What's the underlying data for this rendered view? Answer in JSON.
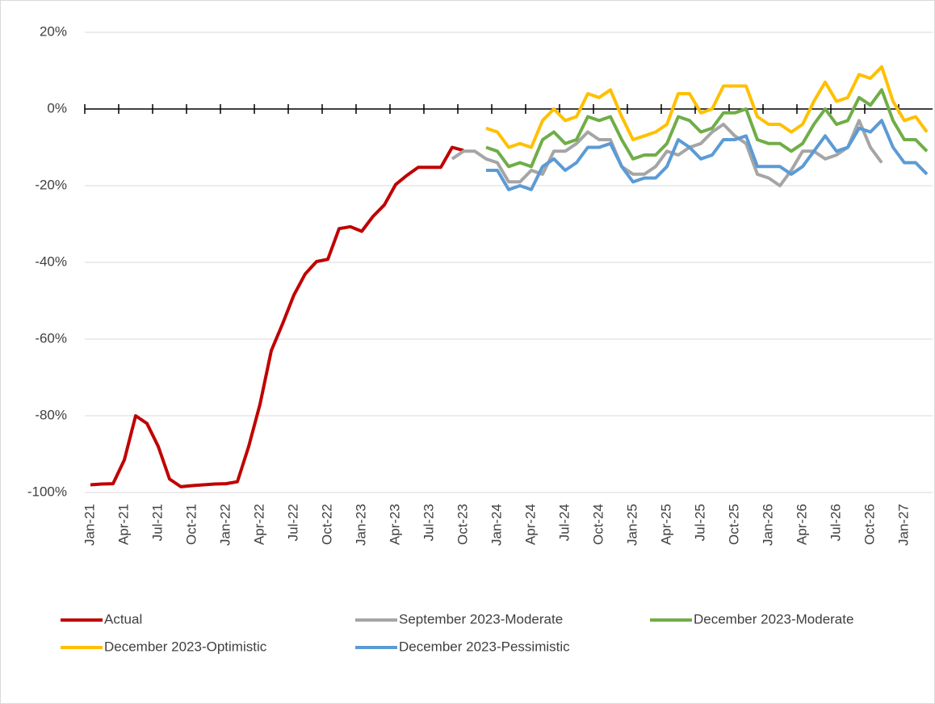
{
  "chart_data": {
    "type": "line",
    "categories": [
      "Jan-21",
      null,
      null,
      "Apr-21",
      null,
      null,
      "Jul-21",
      null,
      null,
      "Oct-21",
      null,
      null,
      "Jan-22",
      null,
      null,
      "Apr-22",
      null,
      null,
      "Jul-22",
      null,
      null,
      "Oct-22",
      null,
      null,
      "Jan-23",
      null,
      null,
      "Apr-23",
      null,
      null,
      "Jul-23",
      null,
      null,
      "Oct-23",
      null,
      null,
      "Jan-24",
      null,
      null,
      "Apr-24",
      null,
      null,
      "Jul-24",
      null,
      null,
      "Oct-24",
      null,
      null,
      "Jan-25",
      null,
      null,
      "Apr-25",
      null,
      null,
      "Jul-25",
      null,
      null,
      "Oct-25",
      null,
      null,
      "Jan-26",
      null,
      null,
      "Apr-26",
      null,
      null,
      "Jul-26",
      null,
      null,
      "Oct-26",
      null,
      null,
      "Jan-27",
      null,
      null
    ],
    "ylim": [
      -100,
      20
    ],
    "yticks": [
      {
        "value": 20,
        "label": "20%"
      },
      {
        "value": 0,
        "label": "0%"
      },
      {
        "value": -20,
        "label": "-20%"
      },
      {
        "value": -40,
        "label": "-40%"
      },
      {
        "value": -60,
        "label": "-60%"
      },
      {
        "value": -80,
        "label": "-80%"
      },
      {
        "value": -100,
        "label": "-100%"
      }
    ],
    "grid": true,
    "legend": "bottom",
    "series": [
      {
        "name": "Actual",
        "color": "#c00000",
        "values": [
          -98,
          -97.8,
          -97.7,
          -91.5,
          -80,
          -82,
          -88,
          -96.5,
          -98.5,
          -98.2,
          -98,
          -97.8,
          -97.7,
          -97.2,
          -88,
          -77,
          -63,
          -56,
          -48.5,
          -43,
          -39.8,
          -39.2,
          -31.2,
          -30.7,
          -31.9,
          -28,
          -25,
          -19.7,
          -17.3,
          -15.2,
          -15.2,
          -15.2,
          -10,
          -10.8,
          null,
          null,
          null,
          null,
          null,
          null,
          null,
          null,
          null,
          null,
          null,
          null,
          null,
          null,
          null,
          null,
          null,
          null,
          null,
          null,
          null,
          null,
          null,
          null,
          null,
          null,
          null,
          null,
          null,
          null,
          null,
          null,
          null,
          null,
          null,
          null,
          null,
          null,
          null,
          null,
          null
        ]
      },
      {
        "name": "September 2023-Moderate",
        "color": "#a5a5a5",
        "values": [
          null,
          null,
          null,
          null,
          null,
          null,
          null,
          null,
          null,
          null,
          null,
          null,
          null,
          null,
          null,
          null,
          null,
          null,
          null,
          null,
          null,
          null,
          null,
          null,
          null,
          null,
          null,
          null,
          null,
          null,
          null,
          null,
          -13,
          -11,
          -11,
          -13,
          -14,
          -19,
          -19,
          -16,
          -17,
          -11,
          -11,
          -9,
          -6,
          -8,
          -8,
          -15,
          -17,
          -17,
          -15,
          -11,
          -12,
          -10,
          -9,
          -6,
          -4,
          -7,
          -9,
          -17,
          -18,
          -20,
          -16,
          -11,
          -11,
          -13,
          -12,
          -10,
          -3,
          -10,
          -14,
          null,
          null,
          null,
          null
        ]
      },
      {
        "name": "December 2023-Moderate",
        "color": "#70ad47",
        "values": [
          null,
          null,
          null,
          null,
          null,
          null,
          null,
          null,
          null,
          null,
          null,
          null,
          null,
          null,
          null,
          null,
          null,
          null,
          null,
          null,
          null,
          null,
          null,
          null,
          null,
          null,
          null,
          null,
          null,
          null,
          null,
          null,
          null,
          null,
          null,
          -10,
          -11,
          -15,
          -14,
          -15,
          -8,
          -6,
          -9,
          -8,
          -2,
          -3,
          -2,
          -8,
          -13,
          -12,
          -12,
          -9,
          -2,
          -3,
          -6,
          -5,
          -1,
          -1,
          0,
          -8,
          -9,
          -9,
          -11,
          -9,
          -4,
          0,
          -4,
          -3,
          3,
          1,
          5,
          -3,
          -8,
          -8,
          -11
        ]
      },
      {
        "name": "December 2023-Optimistic",
        "color": "#ffc000",
        "values": [
          null,
          null,
          null,
          null,
          null,
          null,
          null,
          null,
          null,
          null,
          null,
          null,
          null,
          null,
          null,
          null,
          null,
          null,
          null,
          null,
          null,
          null,
          null,
          null,
          null,
          null,
          null,
          null,
          null,
          null,
          null,
          null,
          null,
          null,
          null,
          -5,
          -6,
          -10,
          -9,
          -10,
          -3,
          0,
          -3,
          -2,
          4,
          3,
          5,
          -2,
          -8,
          -7,
          -6,
          -4,
          4,
          4,
          -1,
          0,
          6,
          6,
          6,
          -2,
          -4,
          -4,
          -6,
          -4,
          2,
          7,
          2,
          3,
          9,
          8,
          11,
          2,
          -3,
          -2,
          -6
        ]
      },
      {
        "name": "December 2023-Pessimistic",
        "color": "#5b9bd5",
        "values": [
          null,
          null,
          null,
          null,
          null,
          null,
          null,
          null,
          null,
          null,
          null,
          null,
          null,
          null,
          null,
          null,
          null,
          null,
          null,
          null,
          null,
          null,
          null,
          null,
          null,
          null,
          null,
          null,
          null,
          null,
          null,
          null,
          null,
          null,
          null,
          -16,
          -16,
          -21,
          -20,
          -21,
          -15,
          -13,
          -16,
          -14,
          -10,
          -10,
          -9,
          -15,
          -19,
          -18,
          -18,
          -15,
          -8,
          -10,
          -13,
          -12,
          -8,
          -8,
          -7,
          -15,
          -15,
          -15,
          -17,
          -15,
          -11,
          -7,
          -11,
          -10,
          -5,
          -6,
          -3,
          -10,
          -14,
          -14,
          -17
        ]
      }
    ]
  }
}
